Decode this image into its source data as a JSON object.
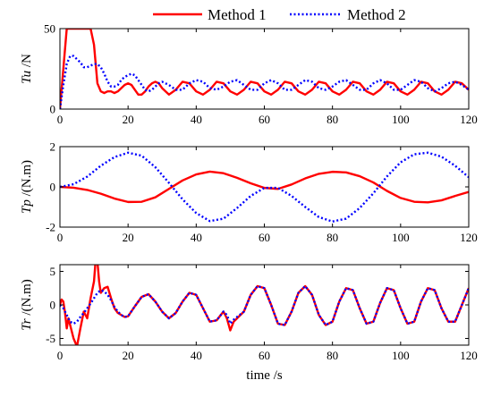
{
  "legend": {
    "items": [
      {
        "label": "Method 1",
        "color": "#ff0000",
        "dash": "solid"
      },
      {
        "label": "Method 2",
        "color": "#0000ff",
        "dash": "dotted"
      }
    ]
  },
  "chart_data": [
    {
      "type": "line",
      "ylabel": "Tu /N",
      "ylabel_italic_part": "Tu",
      "ylabel_unit_part": " /N",
      "xlim": [
        0,
        120
      ],
      "ylim": [
        0,
        50
      ],
      "xticks": [
        0,
        20,
        40,
        60,
        80,
        100,
        120
      ],
      "yticks": [
        0,
        50
      ],
      "show_xlabel": false,
      "series": [
        {
          "name": "Method 1",
          "color": "#ff0000",
          "x": [
            0,
            1,
            2,
            3,
            4,
            5,
            6,
            7,
            8,
            9,
            10,
            11,
            12,
            13,
            14,
            15,
            16,
            17,
            18,
            19,
            20,
            21,
            22,
            23,
            24,
            25,
            26,
            27,
            28,
            29,
            30,
            32,
            34,
            36,
            38,
            40,
            42,
            44,
            46,
            48,
            50,
            52,
            54,
            56,
            58,
            60,
            62,
            64,
            66,
            68,
            70,
            72,
            74,
            76,
            78,
            80,
            82,
            84,
            86,
            88,
            90,
            92,
            94,
            96,
            98,
            100,
            102,
            104,
            106,
            108,
            110,
            112,
            114,
            116,
            118,
            120
          ],
          "y": [
            0,
            25,
            50,
            50,
            50,
            50,
            50,
            50,
            50,
            50,
            40,
            16,
            11,
            10,
            11,
            11,
            10,
            11,
            13,
            15,
            16,
            15,
            12,
            9,
            9,
            11,
            14,
            16,
            17,
            16,
            13,
            9,
            12,
            17,
            16,
            11,
            9,
            12,
            17,
            16,
            11,
            9,
            12,
            17,
            16,
            11,
            9,
            12,
            17,
            16,
            11,
            9,
            12,
            17,
            16,
            11,
            9,
            12,
            17,
            16,
            11,
            9,
            12,
            17,
            16,
            11,
            9,
            12,
            17,
            16,
            11,
            9,
            12,
            17,
            16,
            12
          ]
        },
        {
          "name": "Method 2",
          "color": "#0000ff",
          "x": [
            0,
            1,
            2,
            3,
            4,
            5,
            6,
            7,
            8,
            9,
            10,
            11,
            12,
            13,
            14,
            15,
            16,
            17,
            18,
            19,
            20,
            21,
            22,
            23,
            24,
            25,
            26,
            27,
            28,
            29,
            30,
            32,
            34,
            36,
            38,
            40,
            42,
            44,
            46,
            48,
            50,
            52,
            54,
            56,
            58,
            60,
            62,
            64,
            66,
            68,
            70,
            72,
            74,
            76,
            78,
            80,
            82,
            84,
            86,
            88,
            90,
            92,
            94,
            96,
            98,
            100,
            102,
            104,
            106,
            108,
            110,
            112,
            114,
            116,
            118,
            120
          ],
          "y": [
            0,
            15,
            28,
            33,
            33,
            31,
            29,
            26,
            26,
            27,
            28,
            28,
            26,
            22,
            17,
            14,
            14,
            15,
            18,
            20,
            21,
            22,
            21,
            18,
            15,
            12,
            11,
            12,
            14,
            16,
            17,
            15,
            12,
            12,
            16,
            18,
            17,
            13,
            12,
            14,
            17,
            18,
            15,
            12,
            12,
            16,
            18,
            16,
            12,
            12,
            15,
            18,
            17,
            13,
            12,
            14,
            17,
            18,
            15,
            12,
            12,
            16,
            18,
            16,
            12,
            12,
            15,
            18,
            17,
            13,
            11,
            13,
            16,
            17,
            15,
            12
          ]
        }
      ]
    },
    {
      "type": "line",
      "ylabel": "Tp /(N.m)",
      "ylabel_italic_part": "Tp",
      "ylabel_unit_part": " /(N.m)",
      "xlim": [
        0,
        120
      ],
      "ylim": [
        -2,
        2
      ],
      "xticks": [
        0,
        20,
        40,
        60,
        80,
        100,
        120
      ],
      "yticks": [
        -2,
        0,
        2
      ],
      "show_xlabel": false,
      "series": [
        {
          "name": "Method 1",
          "color": "#ff0000",
          "x": [
            0,
            4,
            8,
            12,
            16,
            20,
            24,
            28,
            32,
            36,
            40,
            44,
            48,
            52,
            56,
            60,
            64,
            68,
            72,
            76,
            80,
            84,
            88,
            92,
            96,
            100,
            104,
            108,
            112,
            116,
            120
          ],
          "y": [
            0,
            -0.04,
            -0.15,
            -0.34,
            -0.58,
            -0.75,
            -0.74,
            -0.52,
            -0.1,
            0.32,
            0.62,
            0.76,
            0.68,
            0.45,
            0.18,
            -0.05,
            -0.1,
            0.12,
            0.42,
            0.65,
            0.75,
            0.72,
            0.53,
            0.22,
            -0.2,
            -0.55,
            -0.74,
            -0.77,
            -0.67,
            -0.45,
            -0.25
          ]
        },
        {
          "name": "Method 2",
          "color": "#0000ff",
          "x": [
            0,
            4,
            8,
            12,
            16,
            20,
            24,
            28,
            32,
            36,
            40,
            44,
            48,
            52,
            56,
            60,
            64,
            68,
            72,
            76,
            80,
            84,
            88,
            92,
            96,
            100,
            104,
            108,
            112,
            116,
            120
          ],
          "y": [
            0,
            0.13,
            0.51,
            1.05,
            1.48,
            1.7,
            1.55,
            0.98,
            0.2,
            -0.62,
            -1.3,
            -1.7,
            -1.58,
            -1.05,
            -0.45,
            -0.05,
            -0.05,
            -0.45,
            -1.0,
            -1.5,
            -1.72,
            -1.58,
            -1.05,
            -0.32,
            0.52,
            1.22,
            1.62,
            1.7,
            1.5,
            1.05,
            0.48
          ]
        }
      ]
    },
    {
      "type": "line",
      "ylabel": "Tr /(N.m)",
      "ylabel_italic_part": "Tr",
      "ylabel_unit_part": " /(N.m)",
      "xlabel": "time /s",
      "xlim": [
        0,
        120
      ],
      "ylim": [
        -6,
        6
      ],
      "xticks": [
        0,
        20,
        40,
        60,
        80,
        100,
        120
      ],
      "yticks": [
        -5,
        0,
        5
      ],
      "show_xlabel": true,
      "series": [
        {
          "name": "Method 1",
          "color": "#ff0000",
          "x": [
            0,
            0.5,
            1,
            1.5,
            2,
            2.5,
            3,
            4,
            5,
            6,
            7,
            8,
            9,
            10,
            10.5,
            11,
            11.5,
            12,
            13,
            14,
            15,
            16,
            17,
            18,
            19,
            20,
            22,
            24,
            26,
            28,
            30,
            32,
            34,
            36,
            38,
            40,
            42,
            44,
            46,
            48,
            49,
            50,
            51,
            52,
            54,
            56,
            58,
            60,
            62,
            64,
            66,
            68,
            70,
            72,
            74,
            76,
            78,
            80,
            82,
            84,
            86,
            88,
            90,
            92,
            94,
            96,
            98,
            100,
            102,
            104,
            106,
            108,
            110,
            112,
            114,
            116,
            118,
            120
          ],
          "y": [
            0,
            0.8,
            0.5,
            -1.2,
            -3.5,
            -2.0,
            -3.0,
            -5.0,
            -6.2,
            -3.5,
            -1.0,
            -2.0,
            1.0,
            3.5,
            6.8,
            6.5,
            3.5,
            1.8,
            2.5,
            2.7,
            1.0,
            -0.5,
            -1.2,
            -1.5,
            -1.8,
            -1.7,
            -0.2,
            1.2,
            1.6,
            0.5,
            -1.0,
            -2.0,
            -1.2,
            0.5,
            1.8,
            1.5,
            -0.5,
            -2.5,
            -2.3,
            -1.0,
            -2.0,
            -3.8,
            -2.5,
            -2.0,
            -1.0,
            1.5,
            2.8,
            2.5,
            0.0,
            -2.8,
            -3.0,
            -1.0,
            1.8,
            2.8,
            1.5,
            -1.5,
            -3.0,
            -2.5,
            0.5,
            2.5,
            2.2,
            -0.5,
            -2.8,
            -2.5,
            0.3,
            2.5,
            2.2,
            -0.5,
            -2.8,
            -2.5,
            0.5,
            2.5,
            2.2,
            -0.5,
            -2.5,
            -2.5,
            0.0,
            2.5
          ]
        },
        {
          "name": "Method 2",
          "color": "#0000ff",
          "x": [
            0,
            1,
            2,
            3,
            4,
            5,
            6,
            7,
            8,
            9,
            10,
            11,
            12,
            13,
            14,
            15,
            16,
            17,
            18,
            19,
            20,
            22,
            24,
            26,
            28,
            30,
            32,
            34,
            36,
            38,
            40,
            42,
            44,
            46,
            48,
            49,
            50,
            51,
            52,
            54,
            56,
            58,
            60,
            62,
            64,
            66,
            68,
            70,
            72,
            74,
            76,
            78,
            80,
            82,
            84,
            86,
            88,
            90,
            92,
            94,
            96,
            98,
            100,
            102,
            104,
            106,
            108,
            110,
            112,
            114,
            116,
            118,
            120
          ],
          "y": [
            0,
            -0.5,
            -1.5,
            -2.5,
            -2.8,
            -2.5,
            -1.8,
            -1.2,
            -0.5,
            0.2,
            1.0,
            1.8,
            2.2,
            2.0,
            1.5,
            0.7,
            -0.3,
            -1.0,
            -1.5,
            -1.8,
            -1.7,
            -0.2,
            1.2,
            1.6,
            0.5,
            -1.0,
            -2.0,
            -1.2,
            0.5,
            1.8,
            1.5,
            -0.5,
            -2.5,
            -2.3,
            -1.0,
            -1.5,
            -2.8,
            -2.2,
            -1.8,
            -1.0,
            1.5,
            2.8,
            2.5,
            0.0,
            -2.8,
            -3.0,
            -1.0,
            1.8,
            2.8,
            1.5,
            -1.5,
            -3.0,
            -2.5,
            0.5,
            2.5,
            2.2,
            -0.5,
            -2.8,
            -2.5,
            0.3,
            2.5,
            2.2,
            -0.5,
            -2.8,
            -2.5,
            0.5,
            2.5,
            2.2,
            -0.5,
            -2.5,
            -2.5,
            0.0,
            2.5
          ]
        }
      ]
    }
  ]
}
